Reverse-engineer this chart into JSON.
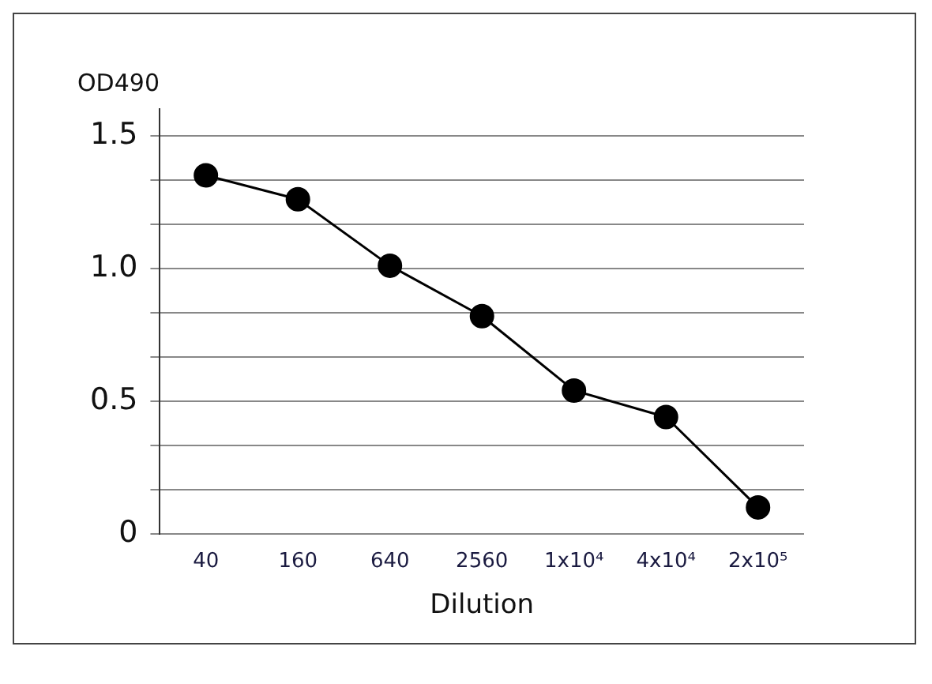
{
  "chart_data": {
    "type": "line",
    "xlabel": "Dilution",
    "ylabel": "OD490",
    "categories": [
      "40",
      "160",
      "640",
      "2560",
      "1x10⁴",
      "4x10⁴",
      "2x10⁵"
    ],
    "series": [
      {
        "color": "#000000",
        "values": [
          1.35,
          1.26,
          1.01,
          0.82,
          0.54,
          0.44,
          0.1
        ]
      }
    ],
    "ylim": [
      0,
      1.6
    ],
    "yticks": [
      0,
      {
        "value": 0.1667,
        "label": null
      },
      {
        "value": 0.3333,
        "label": null
      },
      {
        "value": 0.5,
        "label": "0.5"
      },
      {
        "value": 0.6667,
        "label": null
      },
      {
        "value": 0.8333,
        "label": null
      },
      {
        "value": 1,
        "label": "1.0"
      },
      {
        "value": 1.1667,
        "label": null
      },
      {
        "value": 1.3333,
        "label": null
      },
      1.5
    ],
    "grid": "y",
    "legend": false,
    "marker": "circle",
    "line_style": "solid"
  }
}
